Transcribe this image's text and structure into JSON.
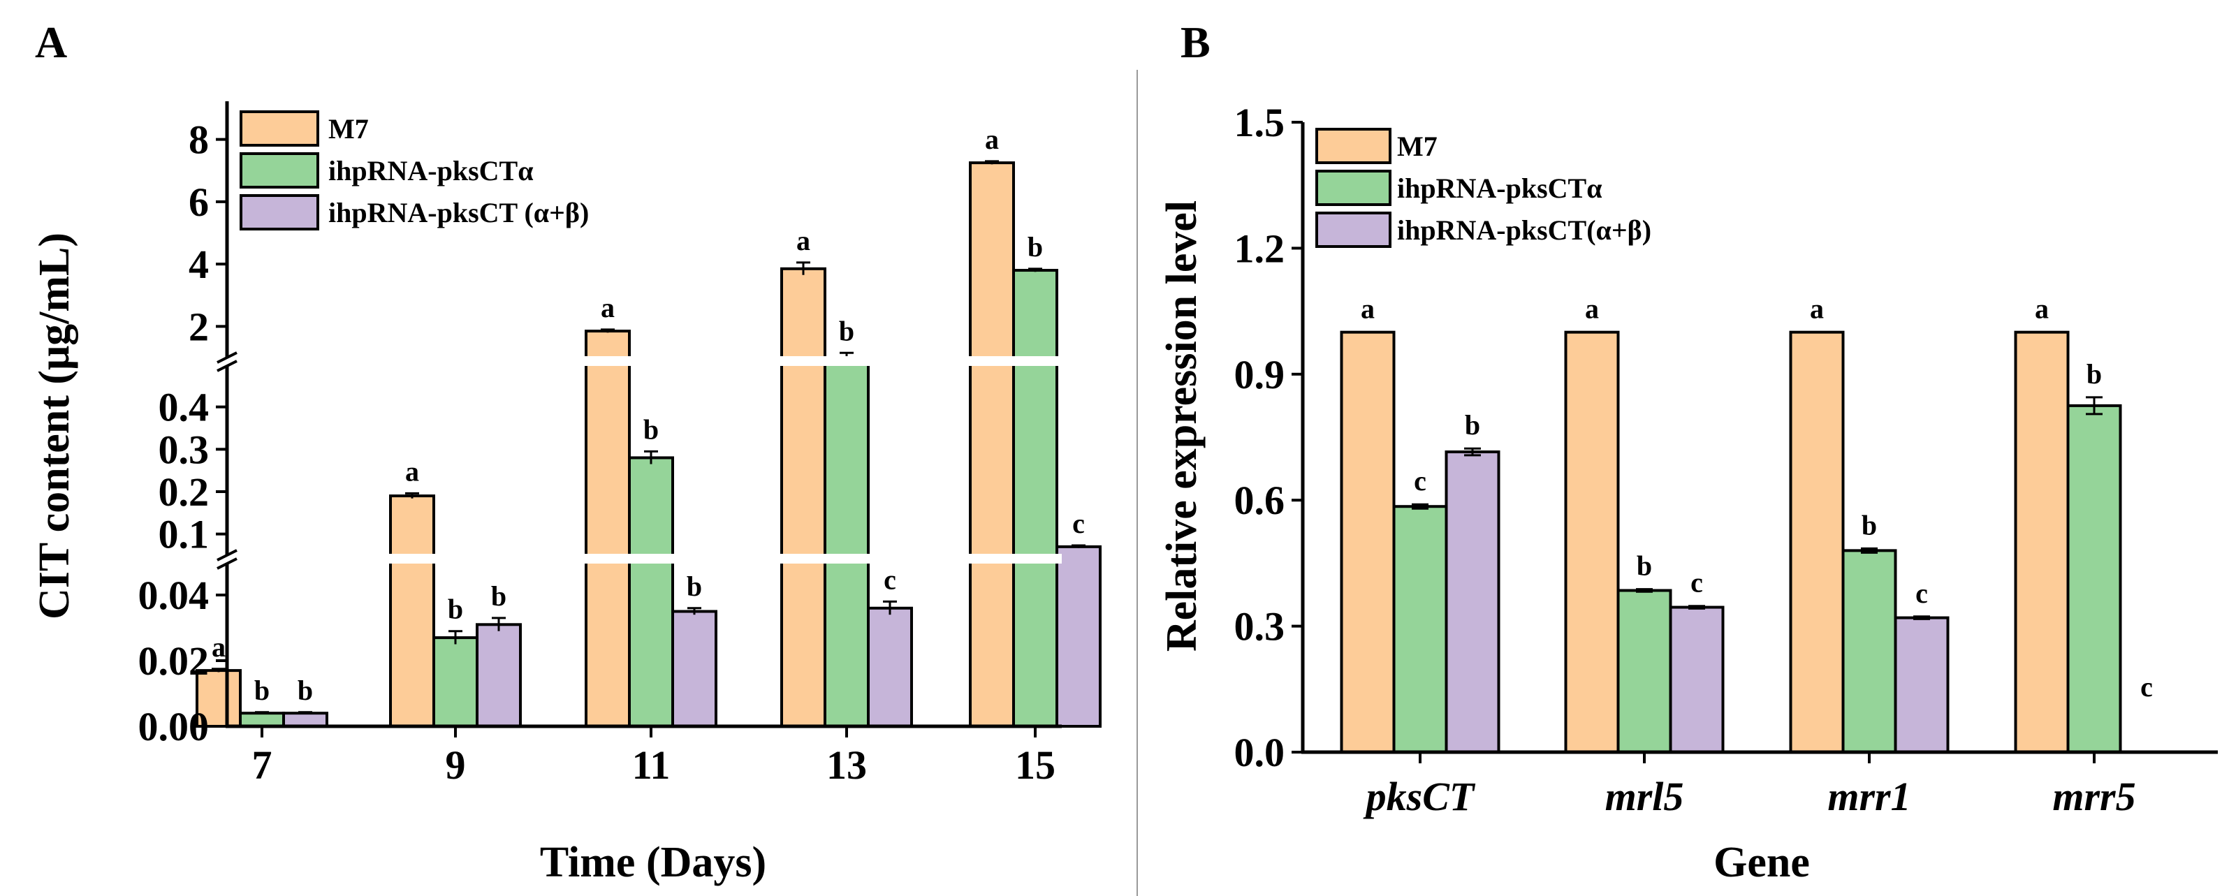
{
  "colors": {
    "M7": "#fdcc98",
    "ihpRNA-pksCTα": "#95d499",
    "ihpRNA-pksCT (α+β)": "#c6b5d9",
    "ihpRNA-pksCT(α+β)": "#c6b5d9",
    "axis": "#000000",
    "divider": "#9a9a9a"
  },
  "chart_data": [
    {
      "panel": "A",
      "type": "bar",
      "xlabel": "Time (Days)",
      "ylabel": "CIT content (μg/mL)",
      "axis_breaks": true,
      "legend_position": "top-left",
      "categories": [
        "7",
        "9",
        "11",
        "13",
        "15"
      ],
      "segments": [
        {
          "range": [
            0,
            0.05
          ],
          "ticks": [
            0.0,
            0.02,
            0.04
          ],
          "tick_labels": [
            "0.00",
            "0.02",
            "0.04"
          ]
        },
        {
          "range": [
            0.05,
            0.5
          ],
          "ticks": [
            0.1,
            0.2,
            0.3,
            0.4
          ],
          "tick_labels": [
            "0.1",
            "0.2",
            "0.3",
            "0.4"
          ]
        },
        {
          "range": [
            1,
            9
          ],
          "ticks": [
            2,
            4,
            6,
            8
          ],
          "tick_labels": [
            "2",
            "4",
            "6",
            "8"
          ]
        }
      ],
      "series": [
        {
          "name": "M7",
          "values": [
            0.017,
            0.19,
            1.85,
            3.85,
            7.25
          ],
          "errors": [
            0.0005,
            0.006,
            0.05,
            0.2,
            0.05
          ],
          "letters": [
            "a",
            "a",
            "a",
            "a",
            "a"
          ]
        },
        {
          "name": "ihpRNA-pksCTα",
          "values": [
            0.004,
            0.027,
            0.28,
            0.9,
            3.8
          ],
          "errors": [
            0.0003,
            0.002,
            0.015,
            0.25,
            0.05
          ],
          "letters": [
            "b",
            "b",
            "b",
            "b",
            "b"
          ]
        },
        {
          "name": "ihpRNA-pksCT (α+β)",
          "values": [
            0.004,
            0.031,
            0.035,
            0.036,
            0.07
          ],
          "errors": [
            0.0003,
            0.002,
            0.001,
            0.002,
            0.003
          ],
          "letters": [
            "b",
            "b",
            "b",
            "c",
            "c"
          ]
        }
      ]
    },
    {
      "panel": "B",
      "type": "bar",
      "xlabel": "Gene",
      "ylabel": "Relative expression level",
      "legend_position": "top-left",
      "categories": [
        "pksCT",
        "mrl5",
        "mrr1",
        "mrr5"
      ],
      "ylim": [
        0,
        1.5
      ],
      "yticks": [
        0.0,
        0.3,
        0.6,
        0.9,
        1.2,
        1.5
      ],
      "ytick_labels": [
        "0.0",
        "0.3",
        "0.6",
        "0.9",
        "1.2",
        "1.5"
      ],
      "series": [
        {
          "name": "M7",
          "values": [
            1.0,
            1.0,
            1.0,
            1.0
          ],
          "errors": [
            0,
            0,
            0,
            0
          ],
          "letters": [
            "a",
            "a",
            "a",
            "a"
          ]
        },
        {
          "name": "ihpRNA-pksCTα",
          "values": [
            0.585,
            0.385,
            0.48,
            0.825
          ],
          "errors": [
            0.005,
            0.003,
            0.005,
            0.02
          ],
          "letters": [
            "c",
            "b",
            "b",
            "b"
          ]
        },
        {
          "name": "ihpRNA-pksCT(α+β)",
          "values": [
            0.715,
            0.345,
            0.32,
            0.0
          ],
          "errors": [
            0.008,
            0.003,
            0.003,
            0
          ],
          "letters": [
            "b",
            "c",
            "c",
            "c"
          ]
        }
      ]
    }
  ]
}
